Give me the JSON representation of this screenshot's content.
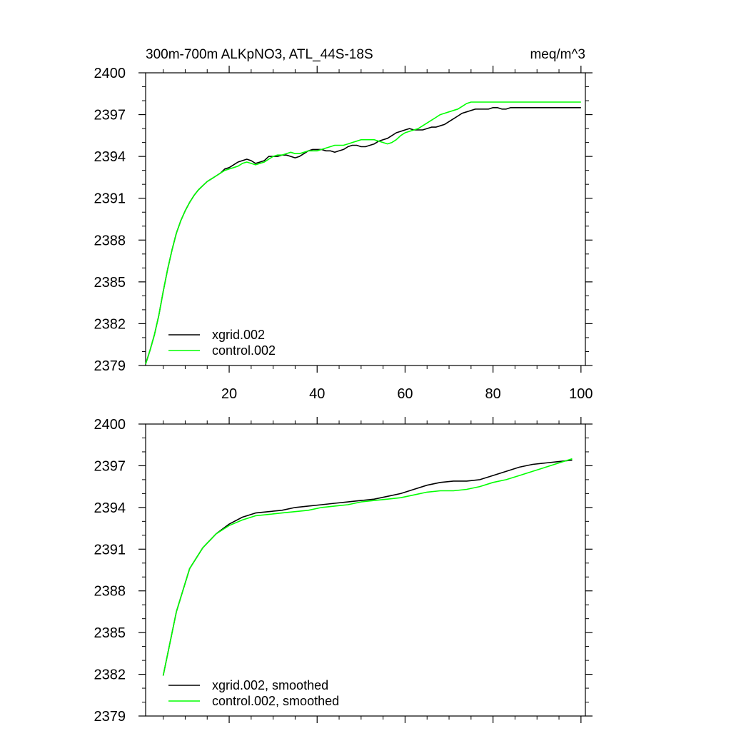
{
  "figure": {
    "title_left": "300m-700m ALKpNO3, ATL_44S-18S",
    "title_right": "meq/m^3"
  },
  "chart_data": [
    {
      "type": "line",
      "xlim": [
        1,
        101
      ],
      "ylim": [
        2379,
        2400
      ],
      "x_ticks": [
        20,
        40,
        60,
        80,
        100
      ],
      "x_tick_labels": [
        "20",
        "40",
        "60",
        "80",
        "100"
      ],
      "x_minor_step": 5,
      "show_x_labels": true,
      "y_ticks": [
        2379,
        2382,
        2385,
        2388,
        2391,
        2394,
        2397,
        2400
      ],
      "y_tick_labels": [
        "2379",
        "2382",
        "2385",
        "2388",
        "2391",
        "2394",
        "2397",
        "2400"
      ],
      "y_minor_step": 1,
      "grid": false,
      "legend": "bottom-left",
      "series": [
        {
          "name": "xgrid.002",
          "color": "#000000",
          "x": [
            1,
            2,
            3,
            4,
            5,
            6,
            7,
            8,
            9,
            10,
            11,
            12,
            13,
            14,
            15,
            16,
            17,
            18,
            19,
            20,
            21,
            22,
            23,
            24,
            25,
            26,
            27,
            28,
            29,
            30,
            31,
            32,
            33,
            34,
            35,
            36,
            37,
            38,
            39,
            40,
            41,
            42,
            43,
            44,
            45,
            46,
            47,
            48,
            49,
            50,
            51,
            52,
            53,
            54,
            55,
            56,
            57,
            58,
            59,
            60,
            61,
            62,
            63,
            64,
            65,
            66,
            67,
            68,
            69,
            70,
            71,
            72,
            73,
            74,
            75,
            76,
            77,
            78,
            79,
            80,
            81,
            82,
            83,
            84,
            85,
            86,
            87,
            88,
            89,
            90,
            91,
            92,
            93,
            94,
            95,
            96,
            97,
            98,
            99,
            100
          ],
          "values": [
            2379.1,
            2380.1,
            2381.2,
            2382.6,
            2384.3,
            2385.9,
            2387.3,
            2388.5,
            2389.4,
            2390.1,
            2390.7,
            2391.2,
            2391.6,
            2391.9,
            2392.2,
            2392.4,
            2392.6,
            2392.8,
            2393.1,
            2393.2,
            2393.4,
            2393.6,
            2393.7,
            2393.8,
            2393.7,
            2393.5,
            2393.6,
            2393.7,
            2394.0,
            2394.0,
            2394.0,
            2394.1,
            2394.1,
            2394.0,
            2393.9,
            2394.0,
            2394.2,
            2394.4,
            2394.5,
            2394.5,
            2394.5,
            2394.4,
            2394.4,
            2394.3,
            2394.4,
            2394.5,
            2394.7,
            2394.8,
            2394.8,
            2394.7,
            2394.7,
            2394.8,
            2394.9,
            2395.1,
            2395.2,
            2395.3,
            2395.5,
            2395.7,
            2395.8,
            2395.9,
            2396.0,
            2395.9,
            2395.9,
            2395.9,
            2396.0,
            2396.1,
            2396.1,
            2396.2,
            2396.3,
            2396.5,
            2396.7,
            2396.9,
            2397.1,
            2397.2,
            2397.3,
            2397.4,
            2397.4,
            2397.4,
            2397.4,
            2397.5,
            2397.5,
            2397.4,
            2397.4,
            2397.5,
            2397.5,
            2397.5,
            2397.5,
            2397.5,
            2397.5,
            2397.5,
            2397.5,
            2397.5,
            2397.5,
            2397.5,
            2397.5,
            2397.5,
            2397.5,
            2397.5,
            2397.5,
            2397.5
          ]
        },
        {
          "name": "control.002",
          "color": "#00ff00",
          "x": [
            1,
            2,
            3,
            4,
            5,
            6,
            7,
            8,
            9,
            10,
            11,
            12,
            13,
            14,
            15,
            16,
            17,
            18,
            19,
            20,
            21,
            22,
            23,
            24,
            25,
            26,
            27,
            28,
            29,
            30,
            31,
            32,
            33,
            34,
            35,
            36,
            37,
            38,
            39,
            40,
            41,
            42,
            43,
            44,
            45,
            46,
            47,
            48,
            49,
            50,
            51,
            52,
            53,
            54,
            55,
            56,
            57,
            58,
            59,
            60,
            61,
            62,
            63,
            64,
            65,
            66,
            67,
            68,
            69,
            70,
            71,
            72,
            73,
            74,
            75,
            76,
            77,
            78,
            79,
            80,
            81,
            82,
            83,
            84,
            85,
            86,
            87,
            88,
            89,
            90,
            91,
            92,
            93,
            94,
            95,
            96,
            97,
            98,
            99,
            100
          ],
          "values": [
            2379.1,
            2380.1,
            2381.2,
            2382.6,
            2384.3,
            2385.9,
            2387.3,
            2388.5,
            2389.4,
            2390.1,
            2390.7,
            2391.2,
            2391.6,
            2391.9,
            2392.2,
            2392.4,
            2392.6,
            2392.8,
            2393.0,
            2393.1,
            2393.2,
            2393.3,
            2393.5,
            2393.6,
            2393.5,
            2393.4,
            2393.5,
            2393.6,
            2393.8,
            2394.0,
            2394.1,
            2394.1,
            2394.2,
            2394.3,
            2394.2,
            2394.2,
            2394.3,
            2394.4,
            2394.4,
            2394.4,
            2394.5,
            2394.6,
            2394.7,
            2394.8,
            2394.8,
            2394.8,
            2394.9,
            2395.0,
            2395.1,
            2395.2,
            2395.2,
            2395.2,
            2395.2,
            2395.1,
            2395.0,
            2394.9,
            2395.0,
            2395.2,
            2395.5,
            2395.7,
            2395.8,
            2395.9,
            2396.0,
            2396.2,
            2396.4,
            2396.6,
            2396.8,
            2397.0,
            2397.1,
            2397.2,
            2397.3,
            2397.4,
            2397.6,
            2397.8,
            2397.9,
            2397.9,
            2397.9,
            2397.9,
            2397.9,
            2397.9,
            2397.9,
            2397.9,
            2397.9,
            2397.9,
            2397.9,
            2397.9,
            2397.9,
            2397.9,
            2397.9,
            2397.9,
            2397.9,
            2397.9,
            2397.9,
            2397.9,
            2397.9,
            2397.9,
            2397.9,
            2397.9,
            2397.9,
            2397.9
          ]
        }
      ]
    },
    {
      "type": "line",
      "xlim": [
        1,
        101
      ],
      "ylim": [
        2379,
        2400
      ],
      "x_ticks": [
        20,
        40,
        60,
        80,
        100
      ],
      "x_tick_labels": [
        "",
        "",
        "",
        "",
        ""
      ],
      "x_minor_step": 5,
      "show_x_labels": false,
      "y_ticks": [
        2379,
        2382,
        2385,
        2388,
        2391,
        2394,
        2397,
        2400
      ],
      "y_tick_labels": [
        "2379",
        "2382",
        "2385",
        "2388",
        "2391",
        "2394",
        "2397",
        "2400"
      ],
      "y_minor_step": 1,
      "grid": false,
      "legend": "bottom-left",
      "series": [
        {
          "name": "xgrid.002, smoothed",
          "color": "#000000",
          "x": [
            5,
            8,
            11,
            14,
            17,
            20,
            23,
            26,
            29,
            32,
            35,
            38,
            41,
            44,
            47,
            50,
            53,
            56,
            59,
            62,
            65,
            68,
            71,
            74,
            77,
            80,
            83,
            86,
            89,
            92,
            95,
            98
          ],
          "values": [
            2381.9,
            2386.5,
            2389.6,
            2391.1,
            2392.1,
            2392.8,
            2393.3,
            2393.6,
            2393.7,
            2393.8,
            2394.0,
            2394.1,
            2394.2,
            2394.3,
            2394.4,
            2394.5,
            2394.6,
            2394.8,
            2395.0,
            2395.3,
            2395.6,
            2395.8,
            2395.9,
            2395.9,
            2396.0,
            2396.3,
            2396.6,
            2396.9,
            2397.1,
            2397.2,
            2397.3,
            2397.4
          ]
        },
        {
          "name": "control.002, smoothed",
          "color": "#00ff00",
          "x": [
            5,
            8,
            11,
            14,
            17,
            20,
            23,
            26,
            29,
            32,
            35,
            38,
            41,
            44,
            47,
            50,
            53,
            56,
            59,
            62,
            65,
            68,
            71,
            74,
            77,
            80,
            83,
            86,
            89,
            92,
            95,
            98
          ],
          "values": [
            2381.9,
            2386.5,
            2389.6,
            2391.1,
            2392.1,
            2392.7,
            2393.1,
            2393.4,
            2393.5,
            2393.6,
            2393.7,
            2393.8,
            2394.0,
            2394.1,
            2394.2,
            2394.4,
            2394.5,
            2394.6,
            2394.7,
            2394.9,
            2395.1,
            2395.2,
            2395.2,
            2395.3,
            2395.5,
            2395.8,
            2396.0,
            2396.3,
            2396.6,
            2396.9,
            2397.2,
            2397.5
          ]
        }
      ]
    }
  ]
}
